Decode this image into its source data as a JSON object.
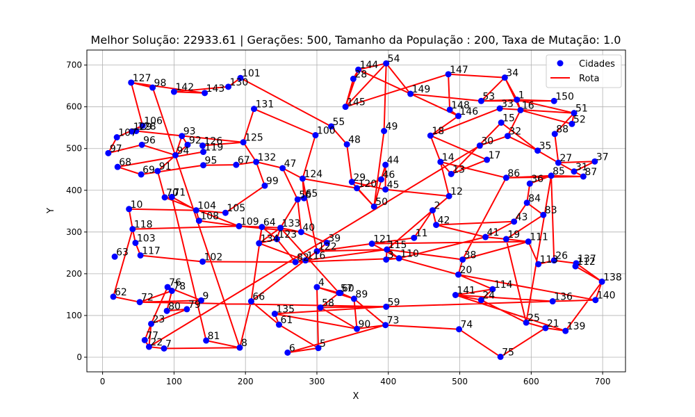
{
  "chart_data": {
    "type": "scatter",
    "title": "Melhor Solução: 22933.61 | Gerações: 500, Tamanho da População : 200, Taxa de Mutação: 1.0",
    "xlabel": "X",
    "ylabel": "Y",
    "xlim": [
      -22,
      732
    ],
    "ylim": [
      -35,
      736
    ],
    "xticks": [
      0,
      100,
      200,
      300,
      400,
      500,
      600,
      700
    ],
    "yticks": [
      0,
      100,
      200,
      300,
      400,
      500,
      600,
      700
    ],
    "grid": true,
    "legend_position": "top-right",
    "colors": {
      "cities": "#0000ff",
      "route": "#ff0000"
    },
    "series": [
      {
        "name": "Cidades",
        "kind": "points"
      },
      {
        "name": "Rota",
        "kind": "line"
      }
    ],
    "points": [
      {
        "label": "1",
        "x": 580,
        "y": 617
      },
      {
        "label": "2",
        "x": 462,
        "y": 352
      },
      {
        "label": "3",
        "x": 397,
        "y": 234
      },
      {
        "label": "4",
        "x": 300,
        "y": 168
      },
      {
        "label": "5",
        "x": 302,
        "y": 22
      },
      {
        "label": "6",
        "x": 259,
        "y": 11
      },
      {
        "label": "7",
        "x": 86,
        "y": 21
      },
      {
        "label": "8",
        "x": 192,
        "y": 23
      },
      {
        "label": "9",
        "x": 138,
        "y": 136
      },
      {
        "label": "10",
        "x": 37,
        "y": 355
      },
      {
        "label": "11",
        "x": 436,
        "y": 286
      },
      {
        "label": "12",
        "x": 485,
        "y": 386
      },
      {
        "label": "13",
        "x": 488,
        "y": 439
      },
      {
        "label": "14",
        "x": 473,
        "y": 468
      },
      {
        "label": "15",
        "x": 558,
        "y": 562
      },
      {
        "label": "16",
        "x": 585,
        "y": 592
      },
      {
        "label": "17",
        "x": 538,
        "y": 473
      },
      {
        "label": "18",
        "x": 459,
        "y": 531
      },
      {
        "label": "19",
        "x": 565,
        "y": 283
      },
      {
        "label": "20",
        "x": 498,
        "y": 198
      },
      {
        "label": "21",
        "x": 620,
        "y": 70
      },
      {
        "label": "22",
        "x": 65,
        "y": 25
      },
      {
        "label": "23",
        "x": 68,
        "y": 80
      },
      {
        "label": "24",
        "x": 530,
        "y": 137
      },
      {
        "label": "25",
        "x": 593,
        "y": 83
      },
      {
        "label": "26",
        "x": 632,
        "y": 232
      },
      {
        "label": "27",
        "x": 638,
        "y": 466
      },
      {
        "label": "28",
        "x": 351,
        "y": 667
      },
      {
        "label": "29",
        "x": 349,
        "y": 420
      },
      {
        "label": "30",
        "x": 528,
        "y": 507
      },
      {
        "label": "31",
        "x": 660,
        "y": 445
      },
      {
        "label": "32",
        "x": 567,
        "y": 530
      },
      {
        "label": "33",
        "x": 556,
        "y": 596
      },
      {
        "label": "34",
        "x": 563,
        "y": 670
      },
      {
        "label": "35",
        "x": 609,
        "y": 495
      },
      {
        "label": "36",
        "x": 598,
        "y": 416
      },
      {
        "label": "37",
        "x": 689,
        "y": 469
      },
      {
        "label": "38",
        "x": 504,
        "y": 234
      },
      {
        "label": "39",
        "x": 314,
        "y": 274
      },
      {
        "label": "40",
        "x": 278,
        "y": 300
      },
      {
        "label": "41",
        "x": 536,
        "y": 288
      },
      {
        "label": "42",
        "x": 467,
        "y": 317
      },
      {
        "label": "43",
        "x": 576,
        "y": 325
      },
      {
        "label": "44",
        "x": 396,
        "y": 461
      },
      {
        "label": "45",
        "x": 396,
        "y": 402
      },
      {
        "label": "46",
        "x": 390,
        "y": 426
      },
      {
        "label": "47",
        "x": 252,
        "y": 453
      },
      {
        "label": "48",
        "x": 342,
        "y": 510
      },
      {
        "label": "49",
        "x": 394,
        "y": 542
      },
      {
        "label": "50",
        "x": 380,
        "y": 361
      },
      {
        "label": "51",
        "x": 660,
        "y": 585
      },
      {
        "label": "52",
        "x": 657,
        "y": 559
      },
      {
        "label": "53",
        "x": 530,
        "y": 614
      },
      {
        "label": "54",
        "x": 397,
        "y": 704
      },
      {
        "label": "55",
        "x": 320,
        "y": 553
      },
      {
        "label": "56",
        "x": 273,
        "y": 378
      },
      {
        "label": "57",
        "x": 331,
        "y": 154
      },
      {
        "label": "58",
        "x": 305,
        "y": 119
      },
      {
        "label": "59",
        "x": 397,
        "y": 121
      },
      {
        "label": "60",
        "x": 333,
        "y": 154
      },
      {
        "label": "61",
        "x": 247,
        "y": 78
      },
      {
        "label": "62",
        "x": 15,
        "y": 145
      },
      {
        "label": "63",
        "x": 17,
        "y": 241
      },
      {
        "label": "64",
        "x": 223,
        "y": 312
      },
      {
        "label": "65",
        "x": 282,
        "y": 381
      },
      {
        "label": "66",
        "x": 208,
        "y": 134
      },
      {
        "label": "67",
        "x": 187,
        "y": 461
      },
      {
        "label": "68",
        "x": 21,
        "y": 456
      },
      {
        "label": "69",
        "x": 54,
        "y": 438
      },
      {
        "label": "70",
        "x": 87,
        "y": 383
      },
      {
        "label": "71",
        "x": 97,
        "y": 384
      },
      {
        "label": "72",
        "x": 52,
        "y": 132
      },
      {
        "label": "73",
        "x": 396,
        "y": 77
      },
      {
        "label": "74",
        "x": 499,
        "y": 67
      },
      {
        "label": "75",
        "x": 557,
        "y": 1
      },
      {
        "label": "76",
        "x": 91,
        "y": 168
      },
      {
        "label": "77",
        "x": 59,
        "y": 41
      },
      {
        "label": "78",
        "x": 97,
        "y": 159
      },
      {
        "label": "79",
        "x": 118,
        "y": 115
      },
      {
        "label": "80",
        "x": 90,
        "y": 111
      },
      {
        "label": "81",
        "x": 145,
        "y": 40
      },
      {
        "label": "82",
        "x": 270,
        "y": 228
      },
      {
        "label": "83",
        "x": 617,
        "y": 341
      },
      {
        "label": "84",
        "x": 594,
        "y": 370
      },
      {
        "label": "85",
        "x": 628,
        "y": 435
      },
      {
        "label": "86",
        "x": 565,
        "y": 430
      },
      {
        "label": "87",
        "x": 673,
        "y": 433
      },
      {
        "label": "88",
        "x": 633,
        "y": 535
      },
      {
        "label": "89",
        "x": 352,
        "y": 140
      },
      {
        "label": "90",
        "x": 356,
        "y": 68
      },
      {
        "label": "91",
        "x": 77,
        "y": 446
      },
      {
        "label": "92",
        "x": 119,
        "y": 509
      },
      {
        "label": "93",
        "x": 111,
        "y": 530
      },
      {
        "label": "94",
        "x": 102,
        "y": 484
      },
      {
        "label": "95",
        "x": 141,
        "y": 460
      },
      {
        "label": "96",
        "x": 55,
        "y": 509
      },
      {
        "label": "97",
        "x": 8,
        "y": 489
      },
      {
        "label": "98",
        "x": 70,
        "y": 646
      },
      {
        "label": "99",
        "x": 227,
        "y": 411
      },
      {
        "label": "100",
        "x": 298,
        "y": 532
      },
      {
        "label": "101",
        "x": 193,
        "y": 669
      },
      {
        "label": "102",
        "x": 140,
        "y": 229
      },
      {
        "label": "103",
        "x": 46,
        "y": 274
      },
      {
        "label": "104",
        "x": 131,
        "y": 352
      },
      {
        "label": "105",
        "x": 172,
        "y": 346
      },
      {
        "label": "106",
        "x": 56,
        "y": 555
      },
      {
        "label": "107",
        "x": 20,
        "y": 527
      },
      {
        "label": "108",
        "x": 135,
        "y": 327
      },
      {
        "label": "109",
        "x": 191,
        "y": 314
      },
      {
        "label": "110",
        "x": 415,
        "y": 237
      },
      {
        "label": "111",
        "x": 596,
        "y": 277
      },
      {
        "label": "112",
        "x": 662,
        "y": 218
      },
      {
        "label": "113",
        "x": 610,
        "y": 223
      },
      {
        "label": "114",
        "x": 546,
        "y": 163
      },
      {
        "label": "115",
        "x": 398,
        "y": 258
      },
      {
        "label": "116",
        "x": 284,
        "y": 232
      },
      {
        "label": "117",
        "x": 53,
        "y": 244
      },
      {
        "label": "118",
        "x": 42,
        "y": 307
      },
      {
        "label": "119",
        "x": 141,
        "y": 492
      },
      {
        "label": "120",
        "x": 356,
        "y": 405
      },
      {
        "label": "121",
        "x": 377,
        "y": 272
      },
      {
        "label": "122",
        "x": 300,
        "y": 254
      },
      {
        "label": "123",
        "x": 244,
        "y": 283
      },
      {
        "label": "124",
        "x": 280,
        "y": 428
      },
      {
        "label": "125",
        "x": 197,
        "y": 515
      },
      {
        "label": "126",
        "x": 140,
        "y": 507
      },
      {
        "label": "127",
        "x": 40,
        "y": 658
      },
      {
        "label": "128",
        "x": 47,
        "y": 542
      },
      {
        "label": "129",
        "x": 41,
        "y": 541
      },
      {
        "label": "130",
        "x": 176,
        "y": 648
      },
      {
        "label": "131",
        "x": 212,
        "y": 595
      },
      {
        "label": "132",
        "x": 215,
        "y": 468
      },
      {
        "label": "133",
        "x": 249,
        "y": 310
      },
      {
        "label": "134",
        "x": 219,
        "y": 273
      },
      {
        "label": "135",
        "x": 241,
        "y": 104
      },
      {
        "label": "136",
        "x": 630,
        "y": 134
      },
      {
        "label": "137",
        "x": 663,
        "y": 225
      },
      {
        "label": "138",
        "x": 699,
        "y": 181
      },
      {
        "label": "139",
        "x": 648,
        "y": 63
      },
      {
        "label": "140",
        "x": 690,
        "y": 137
      },
      {
        "label": "141",
        "x": 494,
        "y": 149
      },
      {
        "label": "142",
        "x": 100,
        "y": 636
      },
      {
        "label": "143",
        "x": 143,
        "y": 633
      },
      {
        "label": "144",
        "x": 358,
        "y": 689
      },
      {
        "label": "145",
        "x": 340,
        "y": 600
      },
      {
        "label": "146",
        "x": 498,
        "y": 578
      },
      {
        "label": "147",
        "x": 484,
        "y": 678
      },
      {
        "label": "148",
        "x": 486,
        "y": 593
      },
      {
        "label": "149",
        "x": 431,
        "y": 631
      },
      {
        "label": "150",
        "x": 632,
        "y": 614
      }
    ],
    "route": [
      "1",
      "150",
      "53",
      "149",
      "54",
      "145",
      "28",
      "144",
      "146",
      "148",
      "147",
      "34",
      "53",
      "1",
      "34",
      "16",
      "52",
      "51",
      "33",
      "18",
      "17",
      "13",
      "14",
      "12",
      "2",
      "11",
      "121",
      "122",
      "39",
      "40",
      "133",
      "123",
      "64",
      "109",
      "118",
      "10",
      "104",
      "105",
      "99",
      "132",
      "67",
      "95",
      "69",
      "68",
      "119",
      "126",
      "125",
      "132",
      "47",
      "124",
      "120",
      "50",
      "29",
      "45",
      "44",
      "46",
      "120",
      "29",
      "48",
      "55",
      "101",
      "130",
      "142",
      "143",
      "127",
      "106",
      "107",
      "97",
      "96",
      "94",
      "93",
      "92",
      "91",
      "70",
      "71",
      "104",
      "108",
      "109",
      "64",
      "134",
      "116",
      "82",
      "102",
      "117",
      "103",
      "118",
      "62",
      "72",
      "9",
      "76",
      "78",
      "80",
      "79",
      "23",
      "77",
      "22",
      "7",
      "8",
      "81",
      "71",
      "70",
      "109",
      "40",
      "56",
      "65",
      "124",
      "100",
      "131",
      "125",
      "128",
      "129",
      "106",
      "127",
      "98",
      "8",
      "66",
      "64",
      "133",
      "56",
      "47",
      "124",
      "122",
      "116",
      "115",
      "3",
      "110",
      "121",
      "111",
      "113",
      "26",
      "137",
      "112",
      "138",
      "140",
      "136",
      "141",
      "24",
      "114",
      "20",
      "38",
      "111",
      "19",
      "41",
      "43",
      "42",
      "2",
      "12",
      "14",
      "13",
      "15",
      "35",
      "32",
      "30",
      "22",
      "23",
      "76",
      "78",
      "72",
      "59",
      "58",
      "57",
      "60",
      "89",
      "73",
      "6",
      "5",
      "4",
      "89",
      "90",
      "135",
      "61",
      "66",
      "122",
      "115",
      "38",
      "86",
      "85",
      "36",
      "84",
      "83",
      "19",
      "25",
      "21",
      "139",
      "138",
      "137",
      "26",
      "85",
      "87",
      "31",
      "37",
      "27",
      "88",
      "51",
      "1",
      "16",
      "32",
      "35",
      "27",
      "31",
      "87",
      "86",
      "14",
      "18",
      "146",
      "148",
      "147",
      "145",
      "144",
      "54",
      "49",
      "50",
      "44",
      "45",
      "12",
      "115",
      "110",
      "41",
      "42",
      "43",
      "84",
      "36",
      "85",
      "25",
      "24",
      "114",
      "141",
      "139",
      "21",
      "75",
      "74",
      "73",
      "90",
      "58",
      "59",
      "136",
      "140",
      "20",
      "110",
      "82",
      "123",
      "134",
      "133",
      "57",
      "4",
      "5",
      "61",
      "135",
      "59"
    ]
  }
}
